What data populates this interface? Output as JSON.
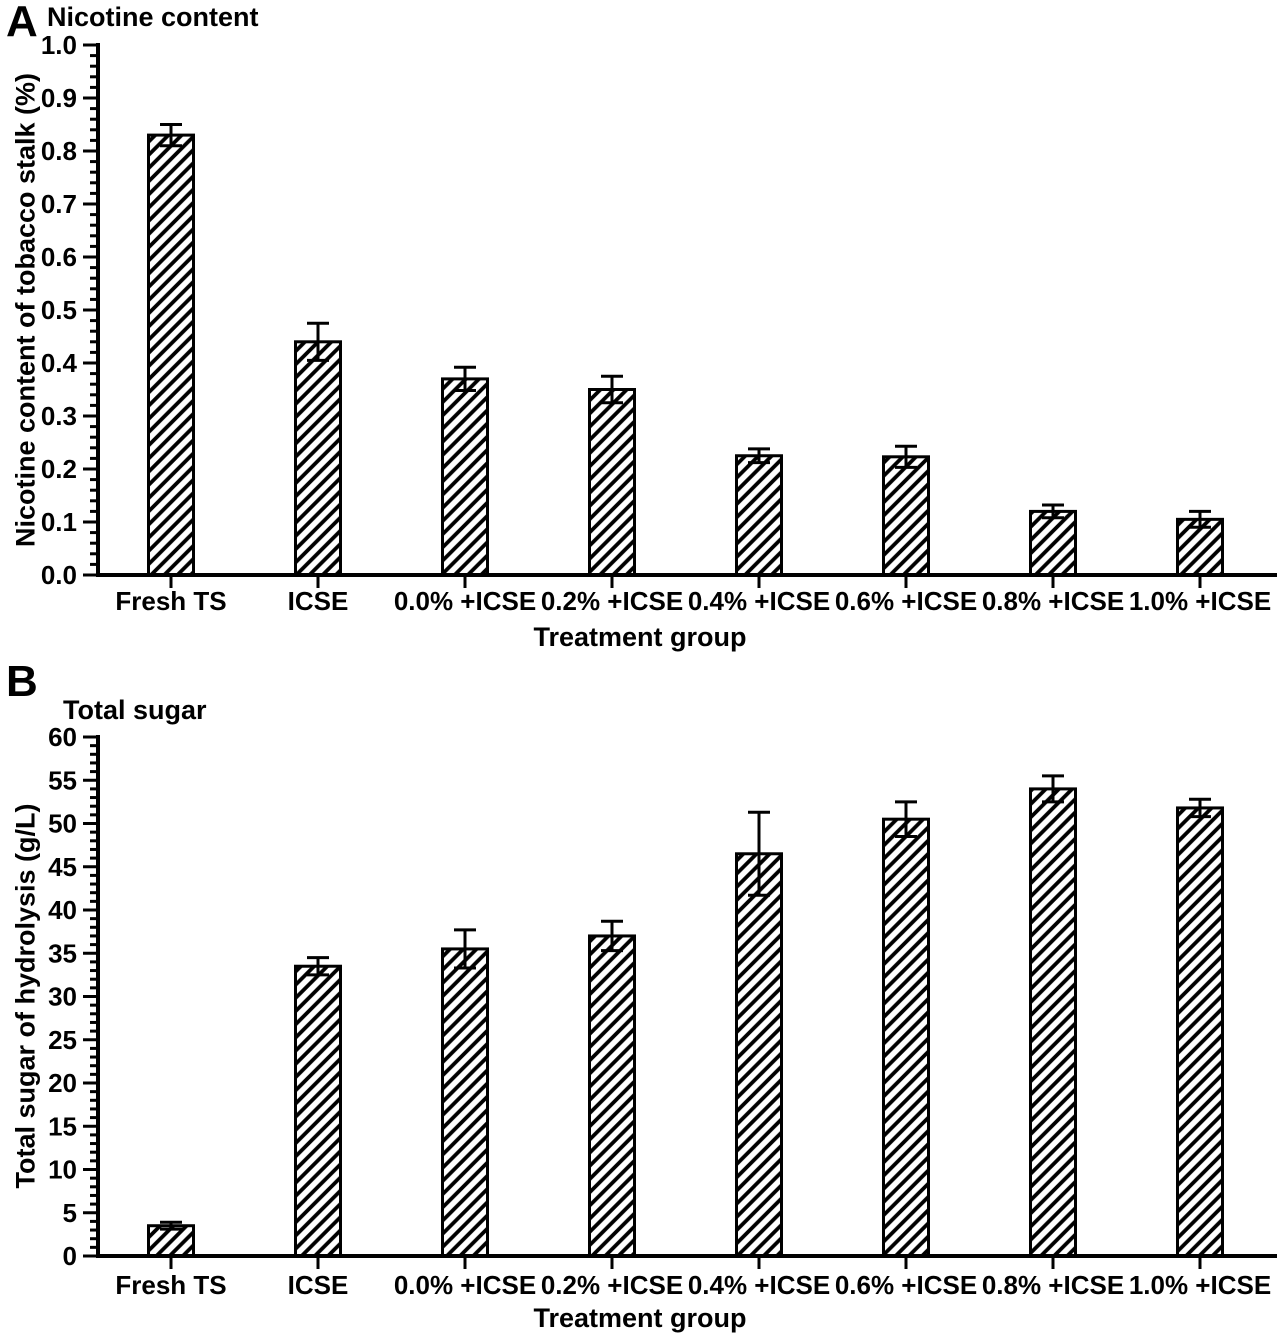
{
  "figure": {
    "panels": [
      {
        "panel_label": "A",
        "title": "Nicotine content",
        "xlabel": "Treatment group",
        "ylabel": "Nicotine content of tobacco stalk (%)"
      },
      {
        "panel_label": "B",
        "title": "Total sugar",
        "xlabel": "Treatment group",
        "ylabel": "Total sugar of hydrolysis (g/L)"
      }
    ]
  },
  "chart_data": [
    {
      "type": "bar",
      "panel": "A",
      "title": "Nicotine content",
      "xlabel": "Treatment group",
      "ylabel": "Nicotine content of tobacco stalk (%)",
      "categories": [
        "Fresh TS",
        "ICSE",
        "0.0% +ICSE",
        "0.2% +ICSE",
        "0.4% +ICSE",
        "0.6% +ICSE",
        "0.8% +ICSE",
        "1.0% +ICSE"
      ],
      "values": [
        0.83,
        0.44,
        0.37,
        0.35,
        0.225,
        0.223,
        0.12,
        0.105
      ],
      "errors": [
        0.02,
        0.035,
        0.022,
        0.025,
        0.013,
        0.02,
        0.012,
        0.015
      ],
      "ylim": [
        0,
        1.0
      ],
      "ytick_step": 0.1,
      "minor_tick_step": 0.02,
      "ytick_decimals": 1,
      "bar_fill": "diagonal-hatch",
      "bar_edge_color": "#000000",
      "grid": false,
      "legend": false,
      "error_bars": "both"
    },
    {
      "type": "bar",
      "panel": "B",
      "title": "Total sugar",
      "xlabel": "Treatment group",
      "ylabel": "Total sugar of hydrolysis (g/L)",
      "categories": [
        "Fresh TS",
        "ICSE",
        "0.0% +ICSE",
        "0.2% +ICSE",
        "0.4% +ICSE",
        "0.6% +ICSE",
        "0.8% +ICSE",
        "1.0% +ICSE"
      ],
      "values": [
        3.5,
        33.5,
        35.5,
        37,
        46.5,
        50.5,
        54,
        51.8
      ],
      "errors": [
        0.4,
        1.0,
        2.2,
        1.7,
        4.8,
        2.0,
        1.5,
        1.0
      ],
      "ylim": [
        0,
        60
      ],
      "ytick_step": 5,
      "minor_tick_step": 1,
      "ytick_decimals": 0,
      "bar_fill": "diagonal-hatch",
      "bar_edge_color": "#000000",
      "grid": false,
      "legend": false,
      "error_bars": "both"
    }
  ]
}
